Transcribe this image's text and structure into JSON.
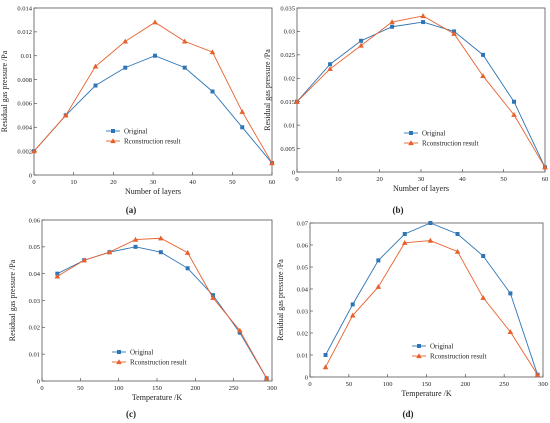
{
  "figure": {
    "colors": {
      "original": "#2e75b6",
      "reconstruction": "#e8602c",
      "axis": "#555555"
    }
  },
  "chart_data": [
    {
      "type": "line",
      "panel_label": "(a)",
      "xlabel": "Number of layers",
      "ylabel": "Residual gas pressure /Pa",
      "xlim": [
        0,
        60
      ],
      "ylim": [
        0,
        0.014
      ],
      "xticks": [
        0,
        10,
        20,
        30,
        40,
        50,
        60
      ],
      "xtick_labels": [
        "0",
        "10",
        "20",
        "30",
        "40",
        "50",
        "60"
      ],
      "yticks": [
        0,
        0.002,
        0.004,
        0.006,
        0.008,
        0.01,
        0.012,
        0.014
      ],
      "ytick_labels": [
        "0",
        "0.002",
        "0.004",
        "0.006",
        "0.008",
        "0.01",
        "0.012",
        "0.014"
      ],
      "grid": false,
      "legend": "center-left",
      "series": [
        {
          "name": "Original",
          "marker": "square",
          "x": [
            0,
            8,
            15.5,
            23,
            30.5,
            38,
            45,
            52.5,
            60
          ],
          "y": [
            0.002,
            0.005,
            0.0075,
            0.009,
            0.01,
            0.009,
            0.007,
            0.004,
            0.001
          ]
        },
        {
          "name": "Rconstruction result",
          "marker": "triangle",
          "x": [
            0,
            8,
            15.5,
            23,
            30.5,
            38,
            45,
            52.5,
            60
          ],
          "y": [
            0.002,
            0.005,
            0.0091,
            0.0112,
            0.0128,
            0.0112,
            0.0103,
            0.0053,
            0.001
          ]
        }
      ]
    },
    {
      "type": "line",
      "panel_label": "(b)",
      "xlabel": "Number of layers",
      "ylabel": "Residual gas pressure /Pa",
      "xlim": [
        0,
        60
      ],
      "ylim": [
        0,
        0.035
      ],
      "xticks": [
        0,
        10,
        20,
        30,
        40,
        50,
        60
      ],
      "xtick_labels": [
        "0",
        "10",
        "20",
        "30",
        "40",
        "50",
        "60"
      ],
      "yticks": [
        0,
        0.005,
        0.01,
        0.015,
        0.02,
        0.025,
        0.03,
        0.035
      ],
      "ytick_labels": [
        "0",
        "0.005",
        "0.01",
        "0.015",
        "0.02",
        "0.025",
        "0.03",
        "0.035"
      ],
      "grid": false,
      "legend": "center",
      "series": [
        {
          "name": "Original",
          "marker": "square",
          "x": [
            0,
            8,
            15.5,
            23,
            30.5,
            38,
            45,
            52.5,
            60
          ],
          "y": [
            0.015,
            0.023,
            0.028,
            0.031,
            0.032,
            0.03,
            0.025,
            0.015,
            0.001
          ]
        },
        {
          "name": "Rconstruction result",
          "marker": "triangle",
          "x": [
            0,
            8,
            15.5,
            23,
            30.5,
            38,
            45,
            52.5,
            60
          ],
          "y": [
            0.015,
            0.022,
            0.027,
            0.032,
            0.0333,
            0.0295,
            0.0205,
            0.0122,
            0.001
          ]
        }
      ]
    },
    {
      "type": "line",
      "panel_label": "(c)",
      "xlabel": "Temperature /K",
      "ylabel": "Residual gas pressure /Pa",
      "xlim": [
        0,
        300
      ],
      "ylim": [
        0,
        0.06
      ],
      "xticks": [
        0,
        50,
        100,
        150,
        200,
        250,
        300
      ],
      "xtick_labels": [
        "0",
        "50",
        "100",
        "150",
        "200",
        "250",
        "300"
      ],
      "yticks": [
        0,
        0.01,
        0.02,
        0.03,
        0.04,
        0.05,
        0.06
      ],
      "ytick_labels": [
        "0",
        "0.01",
        "0.02",
        "0.03",
        "0.04",
        "0.05",
        "0.06"
      ],
      "grid": false,
      "legend": "bottom-center",
      "series": [
        {
          "name": "Original",
          "marker": "square",
          "x": [
            20,
            55,
            88,
            122,
            155,
            190,
            223,
            258,
            293
          ],
          "y": [
            0.04,
            0.045,
            0.048,
            0.05,
            0.048,
            0.042,
            0.032,
            0.018,
            0.001
          ]
        },
        {
          "name": "Rconstruction result",
          "marker": "triangle",
          "x": [
            20,
            55,
            88,
            122,
            155,
            190,
            223,
            258,
            293
          ],
          "y": [
            0.039,
            0.045,
            0.048,
            0.0527,
            0.0532,
            0.0478,
            0.031,
            0.0188,
            0.001
          ]
        }
      ]
    },
    {
      "type": "line",
      "panel_label": "(d)",
      "xlabel": "Temperature /K",
      "ylabel": "Residual gas pressure /Pa",
      "xlim": [
        0,
        300
      ],
      "ylim": [
        0,
        0.07
      ],
      "xticks": [
        0,
        50,
        100,
        150,
        200,
        250,
        300
      ],
      "xtick_labels": [
        "0",
        "50",
        "100",
        "150",
        "200",
        "250",
        "300"
      ],
      "yticks": [
        0,
        0.01,
        0.02,
        0.03,
        0.04,
        0.05,
        0.06,
        0.07
      ],
      "ytick_labels": [
        "0",
        "0.01",
        "0.02",
        "0.03",
        "0.04",
        "0.05",
        "0.06",
        "0.07"
      ],
      "grid": false,
      "legend": "bottom-center",
      "series": [
        {
          "name": "Original",
          "marker": "square",
          "x": [
            20,
            55,
            88,
            122,
            155,
            190,
            223,
            258,
            293
          ],
          "y": [
            0.01,
            0.033,
            0.053,
            0.065,
            0.07,
            0.065,
            0.055,
            0.038,
            0.001
          ]
        },
        {
          "name": "Rconstruction result",
          "marker": "triangle",
          "x": [
            20,
            55,
            88,
            122,
            155,
            190,
            223,
            258,
            293
          ],
          "y": [
            0.0045,
            0.028,
            0.041,
            0.061,
            0.062,
            0.057,
            0.036,
            0.0205,
            0.001
          ]
        }
      ]
    }
  ]
}
